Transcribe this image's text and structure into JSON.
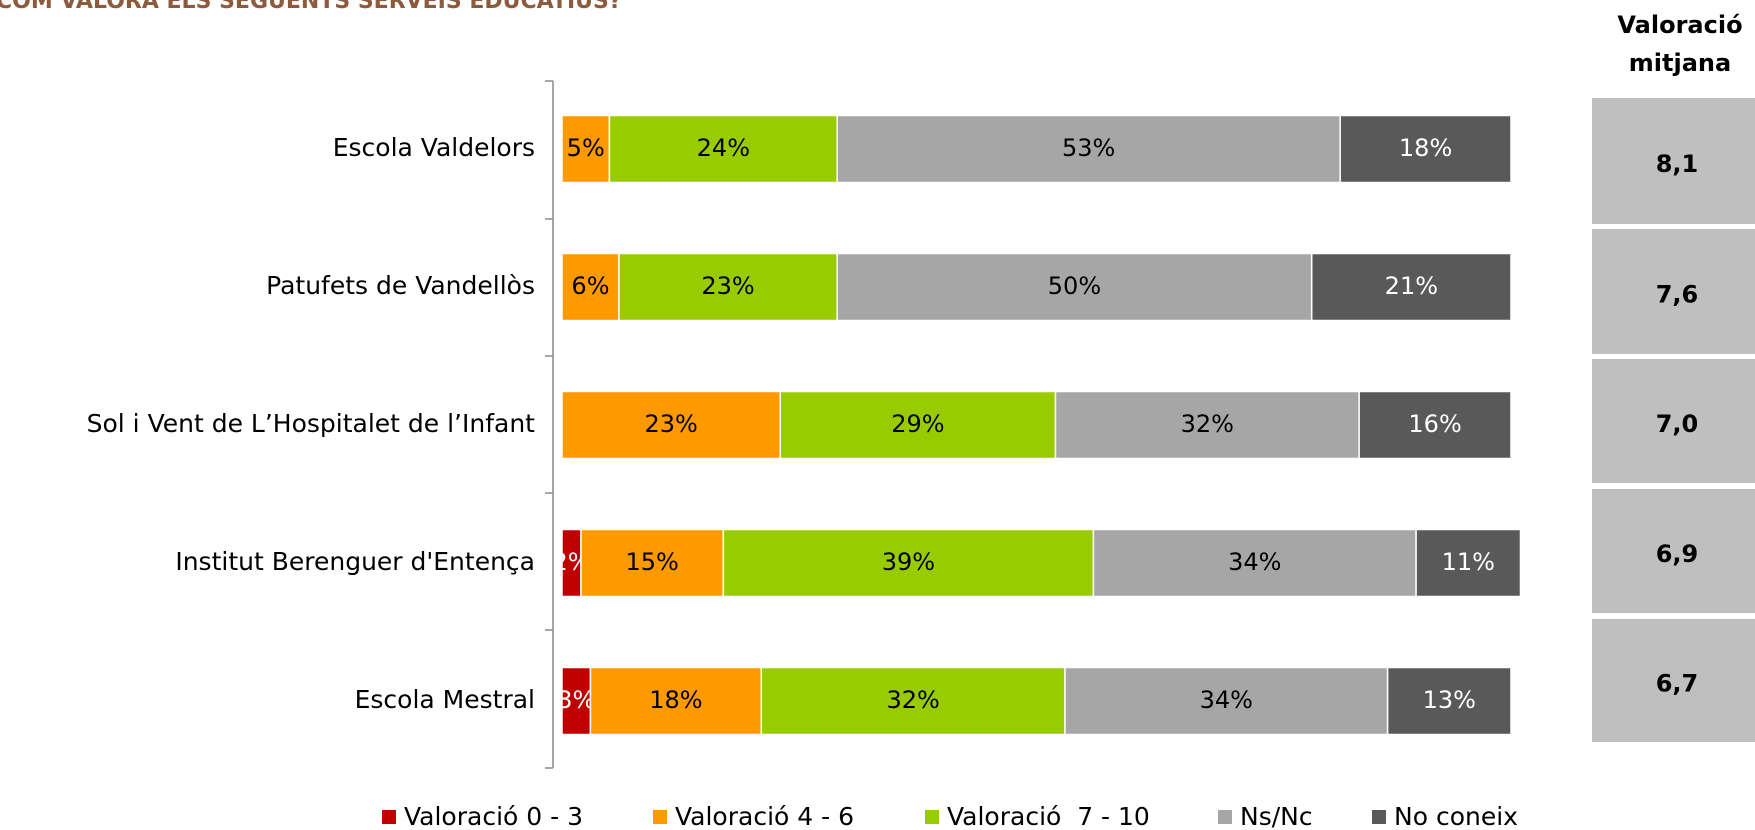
{
  "chart_data": {
    "type": "stacked-bar-horizontal",
    "title": "COM VALORA ELS SEGÜENTS SERVEIS EDUCATIUS?",
    "categories": [
      "Escola Valdelors",
      "Patufets de Vandellòs",
      "Sol i Vent de L’Hospitalet de l’Infant",
      "Institut Berenguer d'Entença",
      "Escola Mestral"
    ],
    "xlim": [
      0,
      100
    ],
    "series": [
      {
        "name": "Valoració 0 - 3",
        "color": "#c00000",
        "values": [
          null,
          null,
          null,
          2,
          3
        ],
        "value_labels": [
          null,
          null,
          null,
          "2%",
          "3%"
        ]
      },
      {
        "name": "Valoració 4 - 6",
        "color": "#ff9900",
        "values": [
          5,
          6,
          23,
          15,
          18
        ],
        "value_labels": [
          "5%",
          "6%",
          "23%",
          "15%",
          "18%"
        ]
      },
      {
        "name": "Valoració  7 - 10",
        "color": "#99cc00",
        "values": [
          24,
          23,
          29,
          39,
          32
        ],
        "value_labels": [
          "24%",
          "23%",
          "29%",
          "39%",
          "32%"
        ]
      },
      {
        "name": "Ns/Nc",
        "color": "#a6a6a6",
        "values": [
          53,
          50,
          32,
          34,
          34
        ],
        "value_labels": [
          "53%",
          "50%",
          "32%",
          "34%",
          "34%"
        ]
      },
      {
        "name": "No coneix",
        "color": "#595959",
        "values": [
          18,
          21,
          16,
          11,
          13
        ],
        "value_labels": [
          "18%",
          "21%",
          "16%",
          "11%",
          "13%"
        ]
      }
    ],
    "averages": {
      "title": "Valoració mitjana",
      "values": [
        8.1,
        7.6,
        7.0,
        6.9,
        6.7
      ],
      "value_labels": [
        "8,1",
        "7,6",
        "7,0",
        "6,9",
        "6,7"
      ]
    }
  }
}
